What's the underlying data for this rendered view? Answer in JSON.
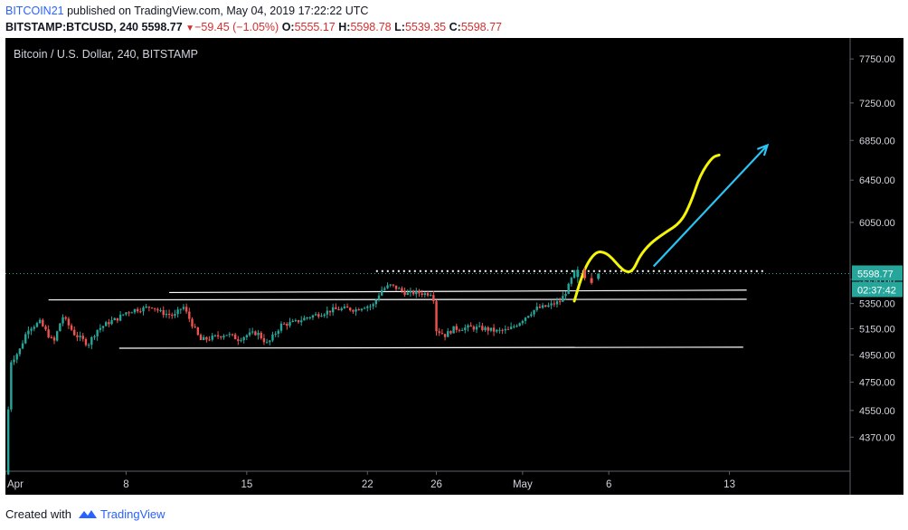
{
  "header": {
    "publisher": "BITCOIN21",
    "published_text": "published on TradingView.com, May 04, 2019 17:22:22 UTC",
    "symbol_interval": "BITSTAMP:BTCUSD, 240",
    "last_price": "5598.77",
    "change": "−59.45 (−1.05%)",
    "ohlc": {
      "o_label": "O:",
      "o": "5555.17",
      "h_label": "H:",
      "h": "5598.78",
      "l_label": "L:",
      "l": "5539.35",
      "c_label": "C:",
      "c": "5598.77"
    }
  },
  "chart_data": {
    "type": "candlestick",
    "title": "Bitcoin / U.S. Dollar, 240, BITSTAMP",
    "xlabel": "",
    "ylabel": "",
    "x_ticks": [
      "Apr",
      "8",
      "15",
      "22",
      "26",
      "May",
      "6",
      "13"
    ],
    "x_tick_days": [
      1,
      8,
      15,
      22,
      26,
      31,
      36,
      43
    ],
    "x_range_days": [
      1,
      50
    ],
    "y_ticks": [
      4370,
      4550,
      4750,
      4950,
      5150,
      5350,
      5550,
      6050,
      6450,
      6850,
      7250,
      7750
    ],
    "y_range": [
      4150,
      8000
    ],
    "y_scale": "log",
    "grid": false,
    "last_price_label": "5598.77",
    "countdown_label": "02:37:42",
    "price_path": [
      [
        1.0,
        4130
      ],
      [
        1.3,
        4900
      ],
      [
        1.8,
        4980
      ],
      [
        2.3,
        5150
      ],
      [
        3.0,
        5200
      ],
      [
        3.8,
        5040
      ],
      [
        4.3,
        5250
      ],
      [
        5.0,
        5110
      ],
      [
        5.8,
        5030
      ],
      [
        6.3,
        5140
      ],
      [
        7.0,
        5200
      ],
      [
        7.5,
        5230
      ],
      [
        8.0,
        5280
      ],
      [
        8.5,
        5300
      ],
      [
        9.0,
        5310
      ],
      [
        9.5,
        5330
      ],
      [
        10.0,
        5280
      ],
      [
        10.8,
        5250
      ],
      [
        11.3,
        5330
      ],
      [
        11.7,
        5220
      ],
      [
        12.3,
        5060
      ],
      [
        13.0,
        5080
      ],
      [
        13.8,
        5110
      ],
      [
        14.5,
        5070
      ],
      [
        15.0,
        5100
      ],
      [
        15.6,
        5120
      ],
      [
        16.2,
        5030
      ],
      [
        17.0,
        5180
      ],
      [
        17.8,
        5200
      ],
      [
        18.5,
        5240
      ],
      [
        19.3,
        5270
      ],
      [
        20.0,
        5300
      ],
      [
        20.8,
        5310
      ],
      [
        21.3,
        5300
      ],
      [
        21.8,
        5330
      ],
      [
        22.3,
        5330
      ],
      [
        22.8,
        5460
      ],
      [
        23.3,
        5500
      ],
      [
        23.8,
        5470
      ],
      [
        24.3,
        5430
      ],
      [
        24.8,
        5440
      ],
      [
        25.4,
        5430
      ],
      [
        25.8,
        5440
      ],
      [
        26.0,
        5140
      ],
      [
        26.5,
        5100
      ],
      [
        27.0,
        5150
      ],
      [
        28.0,
        5160
      ],
      [
        28.8,
        5150
      ],
      [
        29.5,
        5130
      ],
      [
        30.2,
        5140
      ],
      [
        30.8,
        5200
      ],
      [
        31.3,
        5260
      ],
      [
        31.8,
        5310
      ],
      [
        32.5,
        5330
      ],
      [
        33.2,
        5370
      ],
      [
        33.6,
        5470
      ],
      [
        34.0,
        5610
      ],
      [
        34.6,
        5620
      ],
      [
        35.0,
        5540
      ],
      [
        35.4,
        5599
      ]
    ],
    "candles": [
      {
        "t": 34.2,
        "o": 5570,
        "h": 5660,
        "l": 5520,
        "c": 5630
      },
      {
        "t": 34.6,
        "o": 5630,
        "h": 5650,
        "l": 5540,
        "c": 5560
      },
      {
        "t": 35.0,
        "o": 5560,
        "h": 5600,
        "l": 5505,
        "c": 5520
      },
      {
        "t": 35.4,
        "o": 5555.17,
        "h": 5598.78,
        "l": 5539.35,
        "c": 5598.77
      }
    ],
    "drawings": [
      {
        "type": "hline",
        "from": [
          10.5,
          5440
        ],
        "to": [
          44.0,
          5460
        ],
        "color": "#ffffff"
      },
      {
        "type": "hline",
        "from": [
          3.5,
          5380
        ],
        "to": [
          44.0,
          5385
        ],
        "color": "#ffffff"
      },
      {
        "type": "hline",
        "from": [
          7.6,
          5000
        ],
        "to": [
          43.8,
          5008
        ],
        "color": "#ffffff"
      },
      {
        "type": "dotted",
        "from": [
          22.5,
          5620
        ],
        "to": [
          45.0,
          5620
        ],
        "color": "#ffffff"
      },
      {
        "type": "curve",
        "color": "#f5f50a",
        "points": [
          [
            34.0,
            5370
          ],
          [
            34.4,
            5560
          ],
          [
            34.8,
            5700
          ],
          [
            35.3,
            5790
          ],
          [
            35.8,
            5780
          ],
          [
            36.2,
            5730
          ],
          [
            36.6,
            5660
          ],
          [
            37.0,
            5610
          ],
          [
            37.4,
            5620
          ],
          [
            37.8,
            5750
          ],
          [
            38.4,
            5860
          ],
          [
            39.2,
            5950
          ],
          [
            40.2,
            6050
          ],
          [
            40.8,
            6250
          ],
          [
            41.3,
            6500
          ],
          [
            42.0,
            6680
          ],
          [
            42.4,
            6700
          ]
        ]
      },
      {
        "type": "arrow",
        "color": "#29c5f5",
        "from": [
          38.6,
          5660
        ],
        "to": [
          45.2,
          6800
        ]
      }
    ]
  },
  "footer": {
    "created_with": "Created with",
    "brand": "TradingView"
  }
}
